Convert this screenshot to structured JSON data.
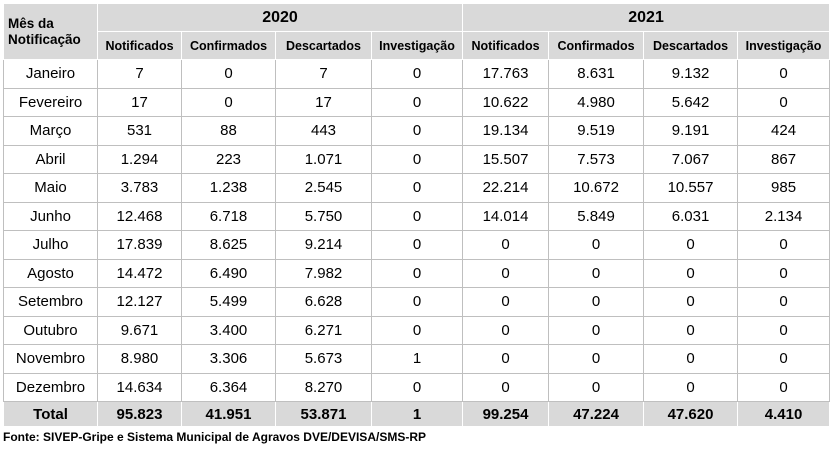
{
  "table": {
    "corner_header": "Mês da Notificação",
    "years": [
      "2020",
      "2021"
    ],
    "columns": [
      "Notificados",
      "Confirmados",
      "Descartados",
      "Investigação",
      "Notificados",
      "Confirmados",
      "Descartados",
      "Investigação"
    ],
    "rows": [
      [
        "Janeiro",
        "7",
        "0",
        "7",
        "0",
        "17.763",
        "8.631",
        "9.132",
        "0"
      ],
      [
        "Fevereiro",
        "17",
        "0",
        "17",
        "0",
        "10.622",
        "4.980",
        "5.642",
        "0"
      ],
      [
        "Março",
        "531",
        "88",
        "443",
        "0",
        "19.134",
        "9.519",
        "9.191",
        "424"
      ],
      [
        "Abril",
        "1.294",
        "223",
        "1.071",
        "0",
        "15.507",
        "7.573",
        "7.067",
        "867"
      ],
      [
        "Maio",
        "3.783",
        "1.238",
        "2.545",
        "0",
        "22.214",
        "10.672",
        "10.557",
        "985"
      ],
      [
        "Junho",
        "12.468",
        "6.718",
        "5.750",
        "0",
        "14.014",
        "5.849",
        "6.031",
        "2.134"
      ],
      [
        "Julho",
        "17.839",
        "8.625",
        "9.214",
        "0",
        "0",
        "0",
        "0",
        "0"
      ],
      [
        "Agosto",
        "14.472",
        "6.490",
        "7.982",
        "0",
        "0",
        "0",
        "0",
        "0"
      ],
      [
        "Setembro",
        "12.127",
        "5.499",
        "6.628",
        "0",
        "0",
        "0",
        "0",
        "0"
      ],
      [
        "Outubro",
        "9.671",
        "3.400",
        "6.271",
        "0",
        "0",
        "0",
        "0",
        "0"
      ],
      [
        "Novembro",
        "8.980",
        "3.306",
        "5.673",
        "1",
        "0",
        "0",
        "0",
        "0"
      ],
      [
        "Dezembro",
        "14.634",
        "6.364",
        "8.270",
        "0",
        "0",
        "0",
        "0",
        "0"
      ]
    ],
    "total": [
      "Total",
      "95.823",
      "41.951",
      "53.871",
      "1",
      "99.254",
      "47.224",
      "47.620",
      "4.410"
    ]
  },
  "source": "Fonte: SIVEP-Gripe e Sistema Municipal de Agravos DVE/DEVISA/SMS-RP"
}
